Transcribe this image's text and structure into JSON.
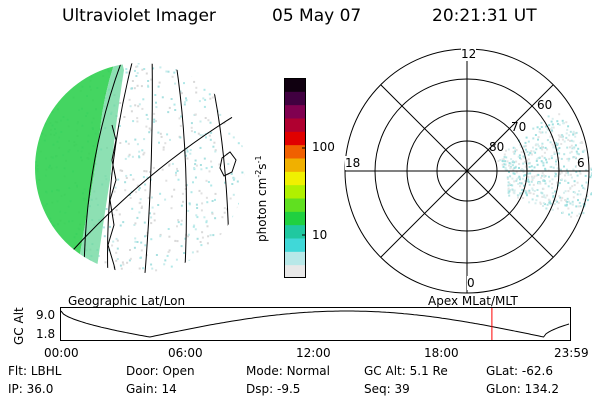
{
  "header": {
    "instrument": "Ultraviolet Imager",
    "date": "05 May 07",
    "time": "20:21:31 UT"
  },
  "colorbar": {
    "unit_label": "photon cm",
    "unit_exp1": "-2",
    "unit_s": "s",
    "unit_exp2": "-1",
    "ticks": [
      {
        "label": "100",
        "value": 100
      },
      {
        "label": "10",
        "value": 10
      }
    ],
    "colors": [
      "#e8e8e8",
      "#b8e8e8",
      "#40d8d8",
      "#20c8a0",
      "#20d040",
      "#60e020",
      "#b0f000",
      "#f0f000",
      "#f0b000",
      "#f06000",
      "#e00000",
      "#b00030",
      "#800050",
      "#400040",
      "#100010"
    ]
  },
  "left_panel": {
    "caption": "Geographic Lat/Lon"
  },
  "right_panel": {
    "caption": "Apex MLat/MLT",
    "mlt_labels": {
      "top": "12",
      "left": "18",
      "right": "6",
      "bottom": "0"
    },
    "lat_labels": [
      "60",
      "70",
      "80"
    ]
  },
  "altitude_plot": {
    "ylabel": "GC Alt",
    "yticks": [
      "9.0",
      "1.8"
    ],
    "xticks": [
      "00:00",
      "06:00",
      "12:00",
      "18:00",
      "23:59"
    ],
    "marker_color": "#ff0000",
    "curve_color": "#000000"
  },
  "info": {
    "row1": [
      {
        "label": "Flt:",
        "value": "LBHL"
      },
      {
        "label": "Door:",
        "value": "Open"
      },
      {
        "label": "Mode:",
        "value": "Normal"
      },
      {
        "label": "GC Alt:",
        "value": "5.1 Re"
      },
      {
        "label": "GLat:",
        "value": "-62.6"
      }
    ],
    "row2": [
      {
        "label": "IP:",
        "value": "36.0"
      },
      {
        "label": "Gain:",
        "value": "14"
      },
      {
        "label": "Dsp:",
        "value": "-9.5"
      },
      {
        "label": "Seq:",
        "value": "39"
      },
      {
        "label": "GLon:",
        "value": "134.2"
      }
    ]
  }
}
